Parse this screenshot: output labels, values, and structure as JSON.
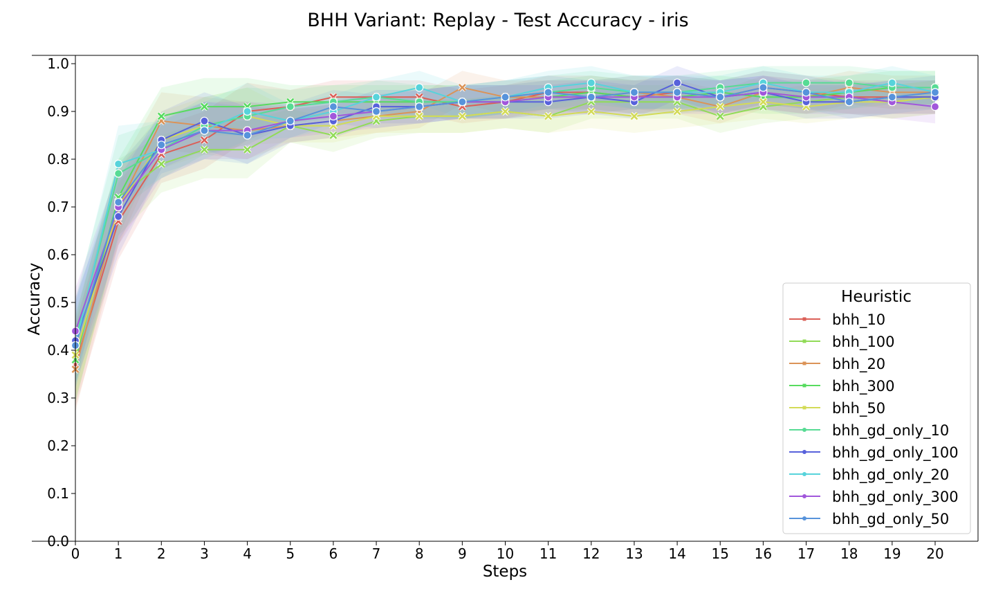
{
  "chart_data": {
    "type": "line",
    "title": "BHH Variant: Replay - Test Accuracy - iris",
    "xlabel": "Steps",
    "ylabel": "Accuracy",
    "xlim": [
      0,
      20
    ],
    "ylim": [
      0.0,
      1.0
    ],
    "xticks": [
      "0",
      "1",
      "2",
      "3",
      "4",
      "5",
      "6",
      "7",
      "8",
      "9",
      "10",
      "11",
      "12",
      "13",
      "14",
      "15",
      "16",
      "17",
      "18",
      "19",
      "20"
    ],
    "yticks": [
      "0.0",
      "0.1",
      "0.2",
      "0.3",
      "0.4",
      "0.5",
      "0.6",
      "0.7",
      "0.8",
      "0.9",
      "1.0"
    ],
    "grid": false,
    "legend": {
      "title": "Heuristic",
      "placement": "lower-right"
    },
    "x": [
      0,
      1,
      2,
      3,
      4,
      5,
      6,
      7,
      8,
      9,
      10,
      11,
      12,
      13,
      14,
      15,
      16,
      17,
      18,
      19,
      20
    ],
    "series": [
      {
        "name": "bhh_10",
        "color": "#db5f57",
        "marker": "x",
        "values": [
          0.37,
          0.67,
          0.81,
          0.84,
          0.9,
          0.91,
          0.93,
          0.93,
          0.93,
          0.91,
          0.92,
          0.94,
          0.94,
          0.93,
          0.94,
          0.93,
          0.95,
          0.94,
          0.93,
          0.93,
          0.93
        ]
      },
      {
        "name": "bhh_100",
        "color": "#91db57",
        "marker": "x",
        "values": [
          0.38,
          0.72,
          0.79,
          0.82,
          0.82,
          0.87,
          0.85,
          0.88,
          0.89,
          0.89,
          0.9,
          0.89,
          0.92,
          0.92,
          0.92,
          0.89,
          0.91,
          0.92,
          0.93,
          0.92,
          0.93
        ]
      },
      {
        "name": "bhh_20",
        "color": "#db9357",
        "marker": "x",
        "values": [
          0.36,
          0.7,
          0.88,
          0.87,
          0.86,
          0.87,
          0.88,
          0.89,
          0.9,
          0.95,
          0.93,
          0.93,
          0.93,
          0.94,
          0.93,
          0.91,
          0.94,
          0.93,
          0.95,
          0.94,
          0.94
        ]
      },
      {
        "name": "bhh_300",
        "color": "#57db5f",
        "marker": "x",
        "values": [
          0.38,
          0.72,
          0.89,
          0.91,
          0.91,
          0.92,
          0.92,
          0.92,
          0.92,
          0.92,
          0.92,
          0.93,
          0.94,
          0.93,
          0.93,
          0.94,
          0.93,
          0.93,
          0.94,
          0.95,
          0.95
        ]
      },
      {
        "name": "bhh_50",
        "color": "#d3db57",
        "marker": "x",
        "values": [
          0.39,
          0.7,
          0.84,
          0.87,
          0.89,
          0.87,
          0.87,
          0.89,
          0.89,
          0.89,
          0.9,
          0.89,
          0.9,
          0.89,
          0.9,
          0.91,
          0.92,
          0.91,
          0.92,
          0.92,
          0.93
        ]
      },
      {
        "name": "bhh_gd_only_10",
        "color": "#57db94",
        "marker": "o",
        "values": [
          0.42,
          0.77,
          0.82,
          0.87,
          0.89,
          0.91,
          0.92,
          0.93,
          0.92,
          0.92,
          0.93,
          0.94,
          0.95,
          0.94,
          0.94,
          0.95,
          0.96,
          0.96,
          0.96,
          0.95,
          0.95
        ]
      },
      {
        "name": "bhh_gd_only_100",
        "color": "#5761db",
        "marker": "o",
        "values": [
          0.42,
          0.68,
          0.84,
          0.88,
          0.85,
          0.87,
          0.88,
          0.91,
          0.91,
          0.92,
          0.92,
          0.92,
          0.93,
          0.92,
          0.96,
          0.93,
          0.94,
          0.92,
          0.92,
          0.93,
          0.93
        ]
      },
      {
        "name": "bhh_gd_only_20",
        "color": "#57d3db",
        "marker": "o",
        "values": [
          0.41,
          0.79,
          0.82,
          0.86,
          0.9,
          0.88,
          0.9,
          0.93,
          0.95,
          0.92,
          0.93,
          0.95,
          0.96,
          0.94,
          0.94,
          0.94,
          0.96,
          0.94,
          0.94,
          0.96,
          0.94
        ]
      },
      {
        "name": "bhh_gd_only_300",
        "color": "#a157db",
        "marker": "o",
        "values": [
          0.44,
          0.7,
          0.82,
          0.86,
          0.86,
          0.88,
          0.89,
          0.9,
          0.91,
          0.92,
          0.92,
          0.93,
          0.93,
          0.93,
          0.93,
          0.93,
          0.94,
          0.93,
          0.93,
          0.92,
          0.91
        ]
      },
      {
        "name": "bhh_gd_only_50",
        "color": "#5793db",
        "marker": "o",
        "values": [
          0.41,
          0.71,
          0.83,
          0.86,
          0.85,
          0.88,
          0.91,
          0.9,
          0.91,
          0.92,
          0.93,
          0.94,
          0.93,
          0.94,
          0.94,
          0.93,
          0.95,
          0.94,
          0.92,
          0.93,
          0.94
        ]
      }
    ]
  }
}
